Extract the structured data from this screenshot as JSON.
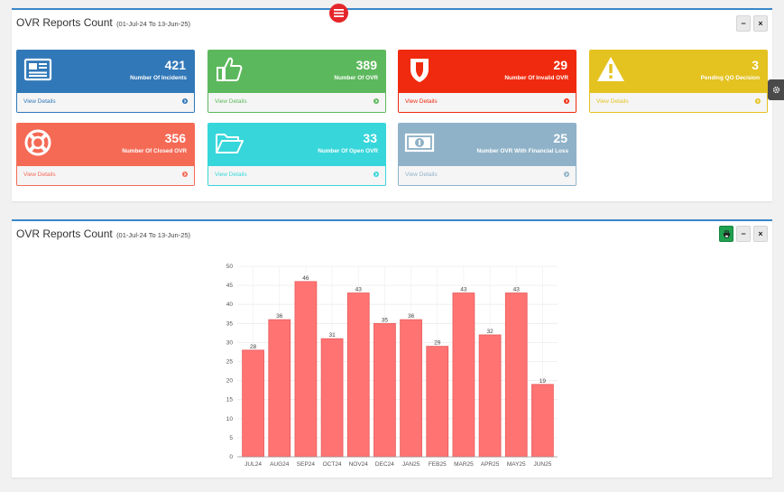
{
  "summary_panel": {
    "title": "OVR Reports Count",
    "date_range": "(01-Jul-24 To 13-Jun-25)",
    "minimize_label": "−",
    "close_label": "×",
    "cards": [
      {
        "count": "421",
        "label": "Number Of Incidents",
        "link": "View Details",
        "color": "#3178b8",
        "icon": "newspaper-icon"
      },
      {
        "count": "389",
        "label": "Number Of OVR",
        "link": "View Details",
        "color": "#5cb85c",
        "icon": "thumbs-up-icon"
      },
      {
        "count": "29",
        "label": "Number Of Invalid OVR",
        "link": "View Details",
        "color": "#f02a0e",
        "icon": "shield-icon"
      },
      {
        "count": "3",
        "label": "Pending QO Decision",
        "link": "View Details",
        "color": "#e4c220",
        "icon": "warning-icon"
      },
      {
        "count": "356",
        "label": "Number Of Closed OVR",
        "link": "View Details",
        "color": "#f56a55",
        "icon": "life-ring-icon"
      },
      {
        "count": "33",
        "label": "Number Of Open OVR",
        "link": "View Details",
        "color": "#37d6da",
        "icon": "folder-open-icon"
      },
      {
        "count": "25",
        "label": "Number OVR With Financial Loss",
        "link": "View Details",
        "color": "#8fb2c8",
        "icon": "money-icon"
      }
    ]
  },
  "chart_panel": {
    "title": "OVR Reports Count",
    "date_range": "(01-Jul-24 To 13-Jun-25)",
    "minimize_label": "−",
    "close_label": "×"
  },
  "chart_data": {
    "type": "bar",
    "categories": [
      "JUL24",
      "AUG24",
      "SEP24",
      "OCT24",
      "NOV24",
      "DEC24",
      "JAN25",
      "FEB25",
      "MAR25",
      "APR25",
      "MAY25",
      "JUN25"
    ],
    "values": [
      28,
      36,
      46,
      31,
      43,
      35,
      36,
      29,
      43,
      32,
      43,
      19
    ],
    "ylim": [
      0,
      50
    ],
    "yticks": [
      0,
      5,
      10,
      15,
      20,
      25,
      30,
      35,
      40,
      45,
      50
    ],
    "bar_color": "#ff7373",
    "bar_border": "#e85a5a",
    "grid": true,
    "data_labels": true,
    "title": "",
    "xlabel": "",
    "ylabel": ""
  }
}
